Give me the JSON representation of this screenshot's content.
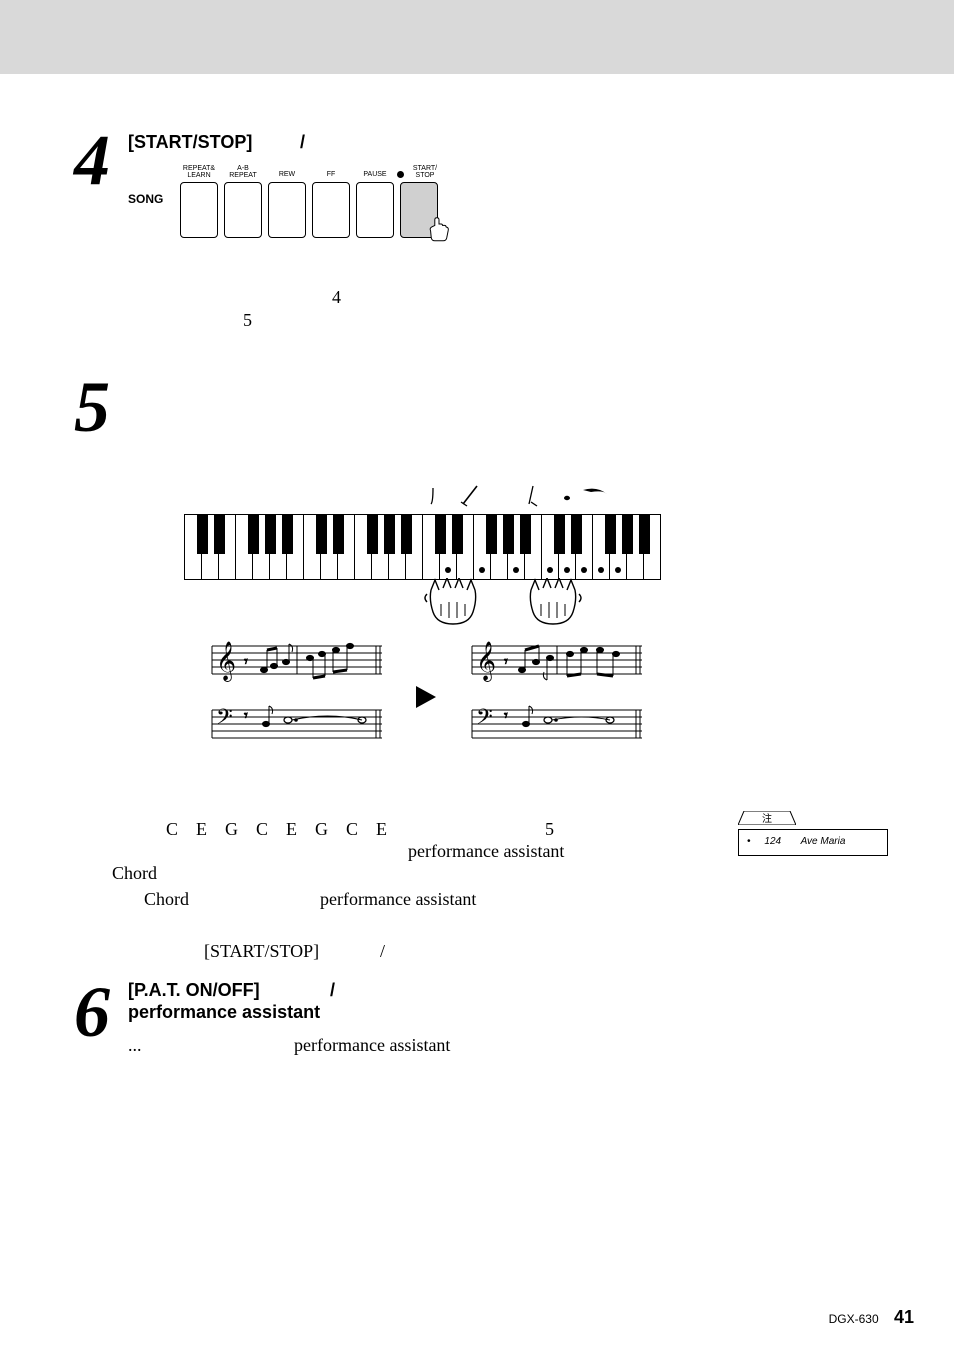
{
  "step4": {
    "number": "4",
    "heading_left": "[START/STOP]",
    "heading_right": "/",
    "song_label": "SONG",
    "buttons": [
      {
        "label": "REPEAT&\nLEARN"
      },
      {
        "label": "A-B\nREPEAT"
      },
      {
        "label": "REW"
      },
      {
        "label": "FF"
      },
      {
        "label": "PAUSE"
      },
      {
        "label": "START/\nSTOP",
        "highlight": true,
        "has_dot": true
      }
    ],
    "midline_4": "4",
    "midline_5": "5"
  },
  "step5": {
    "number": "5",
    "chord_letters": "C    E    G    C    E    G    C    E",
    "line1_tail_num": "5",
    "line2_a": "performance assistant",
    "line3_a": "Chord",
    "line4_a": "Chord",
    "line4_b": "performance assistant",
    "line5": "[START/STOP]",
    "line5_b": "/"
  },
  "note": {
    "tab_label": "注",
    "bullet": "•",
    "page_ref": "124",
    "title": "Ave Maria"
  },
  "step6": {
    "number": "6",
    "heading_a": "[P.A.T. ON/OFF]",
    "heading_slash": "/",
    "heading_b": "performance assistant",
    "body_ellipsis": "...",
    "body_b": "performance assistant"
  },
  "footer": {
    "model": "DGX-630",
    "page": "41"
  },
  "colors": {
    "page_bg": "#ffffff",
    "outer_bg": "#d9d9d9",
    "text": "#000000",
    "highlight_btn": "#d0d0d0"
  }
}
